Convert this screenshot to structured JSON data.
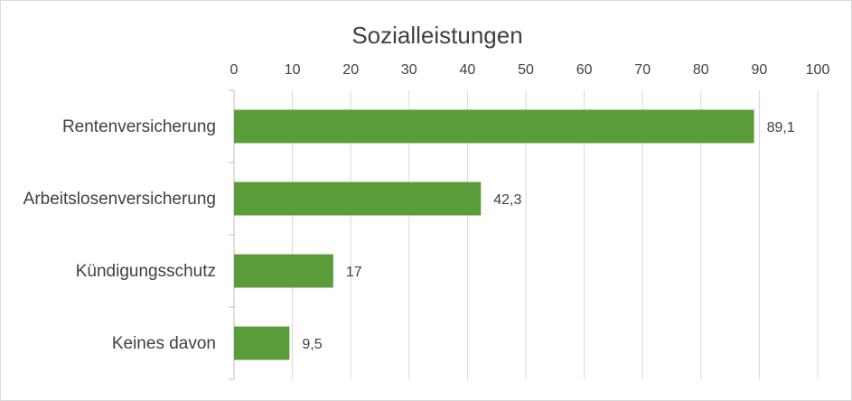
{
  "chart_data": {
    "type": "bar",
    "orientation": "horizontal",
    "title": "Sozialleistungen",
    "categories": [
      "Rentenversicherung",
      "Arbeitslosenversicherung",
      "Kündigungsschutz",
      "Keines davon"
    ],
    "values": [
      89.1,
      42.3,
      17,
      9.5
    ],
    "data_labels": [
      "89,1",
      "42,3",
      "17",
      "9,5"
    ],
    "xlim": [
      0,
      100
    ],
    "xticks": [
      0,
      10,
      20,
      30,
      40,
      50,
      60,
      70,
      80,
      90,
      100
    ],
    "xlabel": "",
    "ylabel": "",
    "x_axis_position": "top",
    "grid": true,
    "bar_color": "#5b9c3a",
    "grid_color": "#d9d9d9",
    "text_color": "#404040"
  }
}
